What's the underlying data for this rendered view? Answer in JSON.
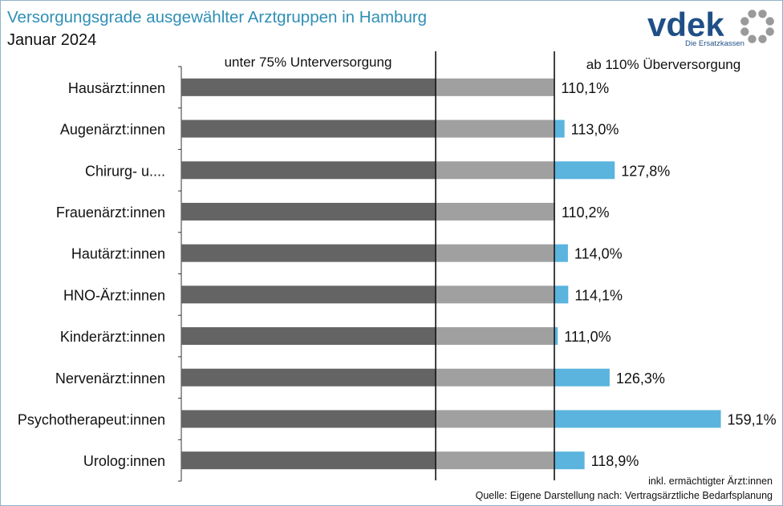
{
  "header": {
    "title": "Versorgungsgrade ausgewählter Arztgruppen in Hamburg",
    "subtitle": "Januar 2024"
  },
  "logo": {
    "wordmark": "vdek",
    "tagline": "Die Ersatzkassen",
    "brand_color": "#1f4f86",
    "ring_color": "#9a9a9a"
  },
  "chart_data": {
    "type": "bar",
    "orientation": "horizontal",
    "categories": [
      "Hausärzt:innen",
      "Augenärzt:innen",
      "Chirurg- u....",
      "Frauenärzt:innen",
      "Hautärzt:innen",
      "HNO-Ärzt:innen",
      "Kinderärzt:innen",
      "Nervenärzt:innen",
      "Psychotherapeut:innen",
      "Urolog:innen"
    ],
    "values": [
      110.1,
      113.0,
      127.8,
      110.2,
      114.0,
      114.1,
      111.0,
      126.3,
      159.1,
      118.9
    ],
    "value_labels": [
      "110,1%",
      "113,0%",
      "127,8%",
      "110,2%",
      "114,0%",
      "114,1%",
      "111,0%",
      "126,3%",
      "159,1%",
      "118,9%"
    ],
    "segments": [
      {
        "range": [
          0,
          75
        ],
        "color": "#646464"
      },
      {
        "range": [
          75,
          110
        ],
        "color": "#a0a0a0"
      },
      {
        "range": [
          110,
          null
        ],
        "color": "#5ab4de"
      }
    ],
    "thresholds": [
      75,
      110
    ],
    "threshold_labels": [
      "unter 75% Unterversorgung",
      "ab 110% Überversorgung"
    ],
    "xlim": [
      0,
      160
    ],
    "grid": false
  },
  "footnotes": {
    "note": "inkl. ermächtigter Ärzt:innen",
    "source": "Quelle: Eigene Darstellung nach: Vertragsärztliche Bedarfsplanung"
  }
}
